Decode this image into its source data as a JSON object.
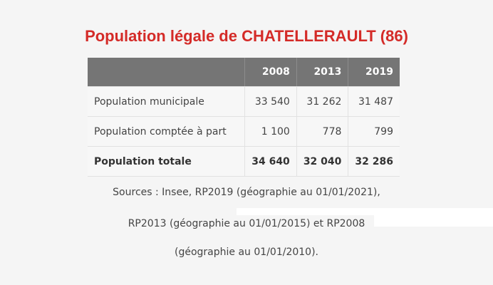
{
  "title": "Population légale de CHATELLERAULT (86)",
  "table": {
    "headers": [
      "",
      "2008",
      "2013",
      "2019"
    ],
    "rows": [
      {
        "label": "Population municipale",
        "values": [
          "33 540",
          "31 262",
          "31 487"
        ]
      },
      {
        "label": "Population comptée à part",
        "values": [
          "1 100",
          "778",
          "799"
        ]
      },
      {
        "label": "Population totale",
        "values": [
          "34 640",
          "32 040",
          "32 286"
        ]
      }
    ]
  },
  "sources": {
    "line1": "Sources : Insee, RP2019 (géographie au 01/01/2021),",
    "line2": "RP2013 (géographie au 01/01/2015) et RP2008",
    "line3": "(géographie au 01/01/2010)."
  }
}
